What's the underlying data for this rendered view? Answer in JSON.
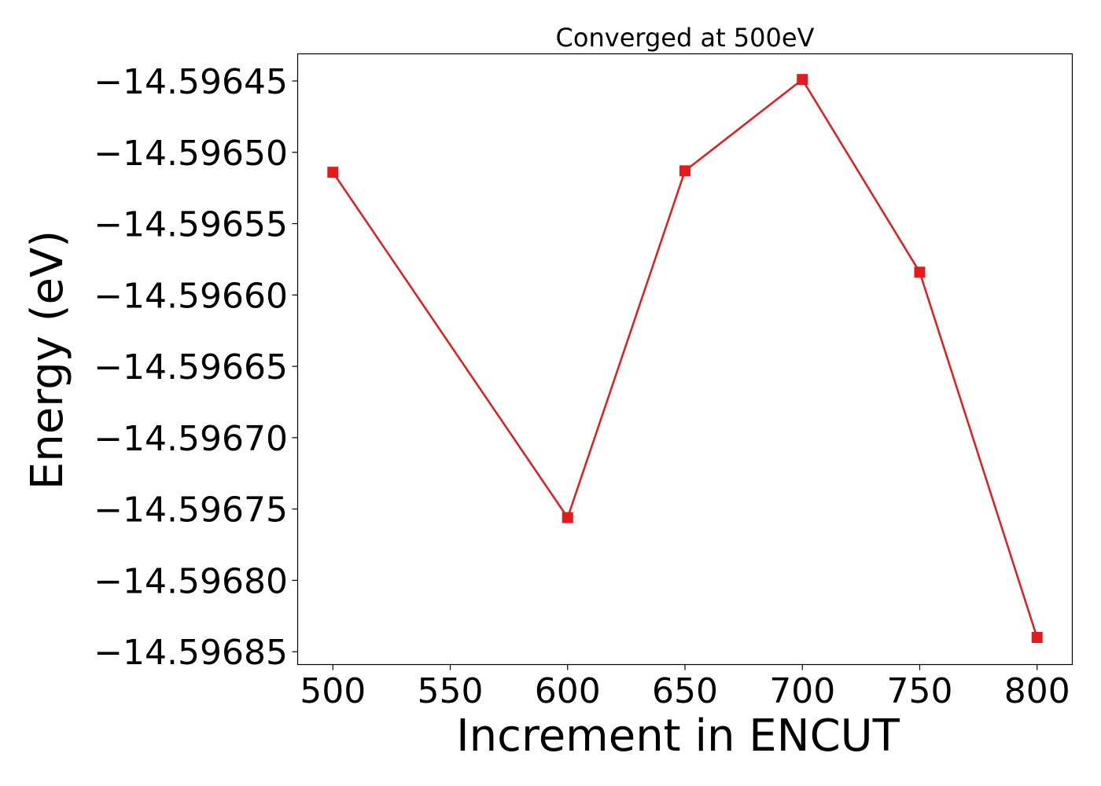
{
  "chart_data": {
    "type": "line",
    "title": "Converged at 500eV",
    "xlabel": "Increment in ENCUT",
    "ylabel": "Energy (eV)",
    "xlim": [
      485,
      815
    ],
    "ylim": [
      -14.596859,
      -14.596431
    ],
    "xticks": [
      500,
      550,
      600,
      650,
      700,
      750,
      800
    ],
    "yticks": [
      -14.59645,
      -14.5965,
      -14.59655,
      -14.5966,
      -14.59665,
      -14.5967,
      -14.59675,
      -14.5968,
      -14.59685
    ],
    "ytick_labels": [
      "−14.59645",
      "−14.59650",
      "−14.59655",
      "−14.59660",
      "−14.59665",
      "−14.59670",
      "−14.59675",
      "−14.59680",
      "−14.59685"
    ],
    "grid": false,
    "legend": "none",
    "series": [
      {
        "color": "#e41a1c",
        "marker": "square",
        "x": [
          500,
          600,
          650,
          700,
          750,
          800
        ],
        "y": [
          -14.596514,
          -14.596756,
          -14.596513,
          -14.596449,
          -14.596584,
          -14.59684
        ]
      }
    ]
  }
}
